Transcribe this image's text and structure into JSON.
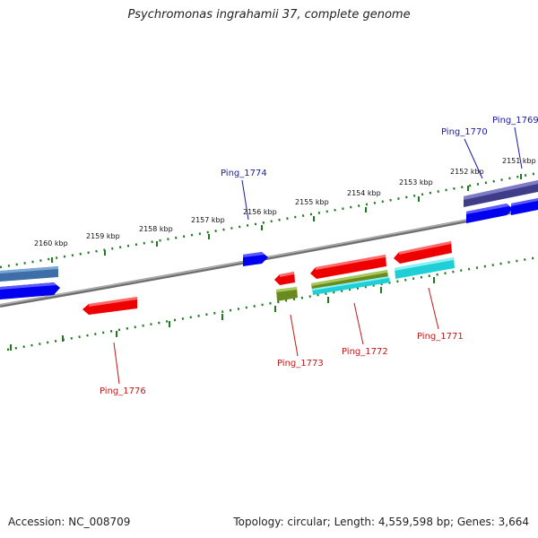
{
  "title": "Psychromonas ingrahamii 37, complete genome",
  "footer": {
    "accession": "Accession: NC_008709",
    "summary": "Topology: circular; Length: 4,559,598 bp; Genes: 3,664"
  },
  "scale_labels": [
    "2160 kbp",
    "2159 kbp",
    "2158 kbp",
    "2157 kbp",
    "2156 kbp",
    "2155 kbp",
    "2154 kbp",
    "2153 kbp",
    "2152 kbp",
    "2151 kbp"
  ],
  "genes": [
    {
      "label": "Ping_1769",
      "strand": "forward",
      "color": "#1a1aa6"
    },
    {
      "label": "Ping_1770",
      "strand": "forward",
      "color": "#1a1aa6"
    },
    {
      "label": "Ping_1774",
      "strand": "forward",
      "color": "#1a1aa6"
    },
    {
      "label": "Ping_1771",
      "strand": "reverse",
      "color": "#c01818"
    },
    {
      "label": "Ping_1772",
      "strand": "reverse",
      "color": "#c01818"
    },
    {
      "label": "Ping_1773",
      "strand": "reverse",
      "color": "#c01818"
    },
    {
      "label": "Ping_1776",
      "strand": "reverse",
      "color": "#c01818"
    }
  ],
  "colors": {
    "backbone": "#8a8a8a",
    "ticks": "#1f7a1f",
    "cds_forward": "#0000ee",
    "cds_reverse": "#ee0000",
    "feature_slate": "#3f3d8a",
    "feature_steel": "#3d6ea8",
    "feature_olive": "#6a8a1f",
    "feature_cyan": "#1ecfd6"
  }
}
